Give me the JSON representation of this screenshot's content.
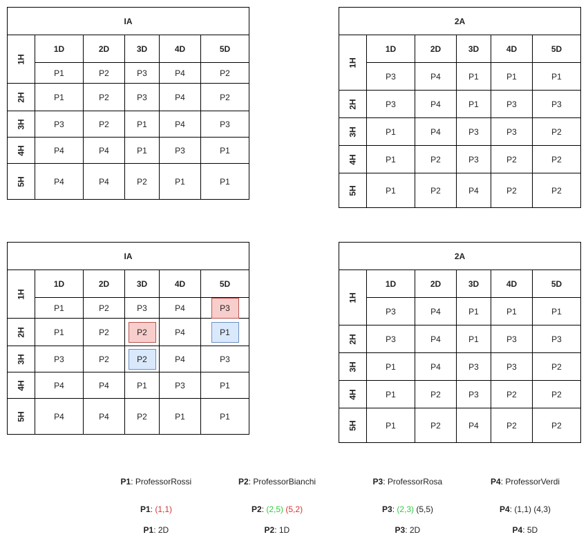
{
  "days": [
    "1D",
    "2D",
    "3D",
    "4D",
    "5D"
  ],
  "hours": [
    "1H",
    "2H",
    "3H",
    "4H",
    "5H"
  ],
  "tables": [
    {
      "title": "IA",
      "rows": [
        [
          "P1",
          "P2",
          "P3",
          "P4",
          "P2"
        ],
        [
          "P1",
          "P2",
          "P3",
          "P4",
          "P2"
        ],
        [
          "P3",
          "P2",
          "P1",
          "P4",
          "P3"
        ],
        [
          "P4",
          "P4",
          "P1",
          "P3",
          "P1"
        ],
        [
          "P4",
          "P4",
          "P2",
          "P1",
          "P1"
        ]
      ]
    },
    {
      "title": "2A",
      "rows": [
        [
          "P3",
          "P4",
          "P1",
          "P1",
          "P1"
        ],
        [
          "P3",
          "P4",
          "P1",
          "P3",
          "P3"
        ],
        [
          "P1",
          "P4",
          "P3",
          "P3",
          "P2"
        ],
        [
          "P1",
          "P2",
          "P3",
          "P2",
          "P2"
        ],
        [
          "P1",
          "P2",
          "P4",
          "P2",
          "P2"
        ]
      ]
    },
    {
      "title": "IA",
      "rows": [
        [
          "P1",
          "P2",
          "P3",
          "P4",
          "P3"
        ],
        [
          "P1",
          "P2",
          "P2",
          "P4",
          "P1"
        ],
        [
          "P3",
          "P2",
          "P2",
          "P4",
          "P3"
        ],
        [
          "P4",
          "P4",
          "P1",
          "P3",
          "P1"
        ],
        [
          "P4",
          "P4",
          "P2",
          "P1",
          "P1"
        ]
      ]
    },
    {
      "title": "2A",
      "rows": [
        [
          "P3",
          "P4",
          "P1",
          "P1",
          "P1"
        ],
        [
          "P3",
          "P4",
          "P1",
          "P3",
          "P3"
        ],
        [
          "P1",
          "P4",
          "P3",
          "P3",
          "P2"
        ],
        [
          "P1",
          "P2",
          "P3",
          "P2",
          "P2"
        ],
        [
          "P1",
          "P2",
          "P4",
          "P2",
          "P2"
        ]
      ]
    }
  ],
  "highlights": {
    "colors": {
      "red_fill": "#f8cecc",
      "red_border": "#b85450",
      "blue_fill": "#dae8fc",
      "blue_border": "#6c8ebf"
    }
  },
  "legend": {
    "names": [
      {
        "key": "P1",
        "value": ": ProfessorRossi"
      },
      {
        "key": "P2",
        "value": ": ProfessorBianchi"
      },
      {
        "key": "P3",
        "value": ": ProfessorRosa"
      },
      {
        "key": "P4",
        "value": ": ProfessorVerdi"
      }
    ],
    "constraints": [
      {
        "key": "P1",
        "sep": ": ",
        "parts": [
          {
            "text": "(1,1)",
            "color": "red"
          }
        ]
      },
      {
        "key": "P2",
        "sep": ": ",
        "parts": [
          {
            "text": "(2,5)",
            "color": "green"
          },
          {
            "text": " "
          },
          {
            "text": "(5,2)",
            "color": "red"
          }
        ]
      },
      {
        "key": "P3",
        "sep": ": ",
        "parts": [
          {
            "text": "(2,3)",
            "color": "green"
          },
          {
            "text": " (5,5)"
          }
        ]
      },
      {
        "key": "P4",
        "sep": ": ",
        "parts": [
          {
            "text": "(1,1) (4,3)"
          }
        ]
      }
    ],
    "days": [
      {
        "key": "P1",
        "value": ": 2D"
      },
      {
        "key": "P2",
        "value": ": 1D"
      },
      {
        "key": "P3",
        "value": ": 2D"
      },
      {
        "key": "P4",
        "value": ": 5D"
      }
    ]
  }
}
